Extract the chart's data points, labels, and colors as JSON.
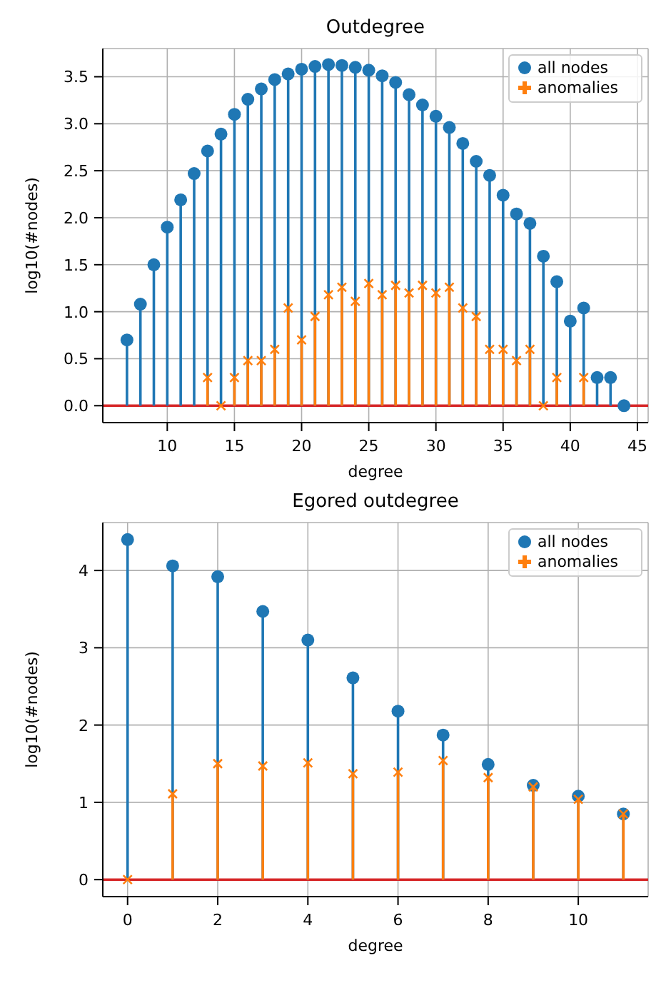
{
  "chart_data": [
    {
      "type": "lollipop",
      "title": "Outdegree",
      "xlabel": "degree",
      "ylabel": "log10(#nodes)",
      "xlim": [
        5.2,
        45.8
      ],
      "xticks": [
        10,
        15,
        20,
        25,
        30,
        35,
        40,
        45
      ],
      "ylim": [
        -0.18,
        3.8
      ],
      "yticks": [
        {
          "value": 0,
          "label": "0.0"
        },
        {
          "value": 0.5,
          "label": "0.5"
        },
        {
          "value": 1,
          "label": "1.0"
        },
        {
          "value": 1.5,
          "label": "1.5"
        },
        {
          "value": 2,
          "label": "2.0"
        },
        {
          "value": 2.5,
          "label": "2.5"
        },
        {
          "value": 3,
          "label": "3.0"
        },
        {
          "value": 3.5,
          "label": "3.5"
        }
      ],
      "grid": true,
      "legend": "top right",
      "ref_lines": [
        {
          "axis": "y",
          "value": 0,
          "color": "#d62728"
        }
      ],
      "series": [
        {
          "name": "all nodes",
          "color": "#1f77b4",
          "marker": "circle",
          "x": [
            7,
            8,
            9,
            10,
            11,
            12,
            13,
            14,
            15,
            16,
            17,
            18,
            19,
            20,
            21,
            22,
            23,
            24,
            25,
            26,
            27,
            28,
            29,
            30,
            31,
            32,
            33,
            34,
            35,
            36,
            37,
            38,
            39,
            40,
            41,
            42,
            43,
            44
          ],
          "values": [
            0.7,
            1.08,
            1.5,
            1.9,
            2.19,
            2.47,
            2.71,
            2.89,
            3.1,
            3.26,
            3.37,
            3.47,
            3.53,
            3.58,
            3.61,
            3.63,
            3.62,
            3.6,
            3.57,
            3.51,
            3.44,
            3.31,
            3.2,
            3.08,
            2.96,
            2.79,
            2.6,
            2.45,
            2.24,
            2.04,
            1.94,
            1.59,
            1.32,
            0.9,
            1.04,
            0.3,
            0.3,
            0
          ]
        },
        {
          "name": "anomalies",
          "color": "#ff7f0e",
          "marker": "cross",
          "x": [
            13,
            14,
            15,
            16,
            17,
            18,
            19,
            20,
            21,
            22,
            23,
            24,
            25,
            26,
            27,
            28,
            29,
            30,
            31,
            32,
            33,
            34,
            35,
            36,
            37,
            38,
            39,
            41
          ],
          "values": [
            0.3,
            0,
            0.3,
            0.48,
            0.48,
            0.6,
            1.04,
            0.7,
            0.95,
            1.18,
            1.26,
            1.11,
            1.3,
            1.18,
            1.28,
            1.2,
            1.28,
            1.2,
            1.26,
            1.04,
            0.95,
            0.6,
            0.6,
            0.48,
            0.6,
            0,
            0.3,
            0.3
          ]
        }
      ]
    },
    {
      "type": "lollipop",
      "title": "Egored outdegree",
      "xlabel": "degree",
      "ylabel": "log10(#nodes)",
      "xlim": [
        -0.55,
        11.55
      ],
      "xticks": [
        0,
        2,
        4,
        6,
        8,
        10
      ],
      "ylim": [
        -0.22,
        4.62
      ],
      "yticks": [
        0,
        1,
        2,
        3,
        4
      ],
      "grid": true,
      "legend": "top right",
      "ref_lines": [
        {
          "axis": "y",
          "value": 0,
          "color": "#d62728"
        }
      ],
      "series": [
        {
          "name": "all nodes",
          "color": "#1f77b4",
          "marker": "circle",
          "x": [
            0,
            1,
            2,
            3,
            4,
            5,
            6,
            7,
            8,
            9,
            10,
            11
          ],
          "values": [
            4.4,
            4.06,
            3.92,
            3.47,
            3.1,
            2.61,
            2.18,
            1.87,
            1.49,
            1.22,
            1.08,
            0.85
          ]
        },
        {
          "name": "anomalies",
          "color": "#ff7f0e",
          "marker": "cross",
          "x": [
            0,
            1,
            2,
            3,
            4,
            5,
            6,
            7,
            8,
            9,
            10,
            11
          ],
          "values": [
            0,
            1.11,
            1.5,
            1.47,
            1.51,
            1.37,
            1.39,
            1.54,
            1.32,
            1.2,
            1.04,
            0.85
          ]
        }
      ]
    }
  ]
}
